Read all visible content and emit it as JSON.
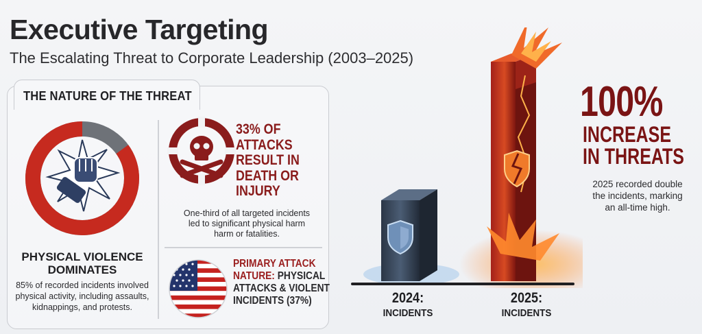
{
  "header": {
    "title": "Executive Targeting",
    "subtitle": "The Escalating Threat to Corporate Leadership (2003–2025)"
  },
  "panel": {
    "title": "THE NATURE OF THE THREAT",
    "violence": {
      "heading_line1": "PHYSICAL VIOLENCE",
      "heading_line2": "DOMINATES",
      "body_line1": "85% of recorded incidents involved",
      "body_line2": "physical activity, including assaults,",
      "body_line3": "kidnappings, and protests.",
      "icon": "fist-icon",
      "share": 0.85,
      "colors": {
        "main": "#c62a1f",
        "rest": "#6e7278"
      }
    },
    "death": {
      "heading_lines": [
        "33% OF",
        "ATTACKS",
        "RESULT IN",
        "DEATH OR",
        "INJURY"
      ],
      "body_line1": "One-third of all targeted incidents",
      "body_line2": "led to significant physical harm",
      "body_line3": "harm or fatalities.",
      "icon": "skull-crossbones-icon",
      "color": "#8a1c1c"
    },
    "primary": {
      "line1": "PRIMARY ATTACK",
      "line2_red": "NATURE:",
      "line2_rest": " PHYSICAL",
      "line3": "ATTACKS & VIOLENT",
      "line4": "INCIDENTS (37%)",
      "icon": "us-flag-icon"
    }
  },
  "comparison": {
    "bar_2024": {
      "year": "2024:",
      "label": "INCIDENTS",
      "icon": "shield-icon",
      "color": "#3c4a5c"
    },
    "bar_2025": {
      "year": "2025:",
      "label": "INCIDENTS",
      "icon": "cracked-shield-icon",
      "color": "#b8281a"
    },
    "percent": "100%",
    "label_line1": "INCREASE",
    "label_line2": "IN THREATS",
    "body_line1": "2025 recorded double",
    "body_line2": "the incidents, marking",
    "body_line3": "an all-time high.",
    "accent": "#7a1414"
  }
}
